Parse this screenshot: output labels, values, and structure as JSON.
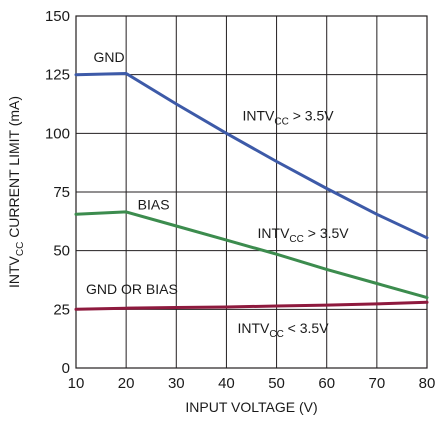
{
  "chart_data": {
    "type": "line",
    "title": "",
    "xlabel": "INPUT VOLTAGE (V)",
    "ylabel": {
      "pre": "INTV",
      "sub": "CC",
      "post": " CURRENT LIMIT (mA)"
    },
    "xlim": [
      10,
      80
    ],
    "ylim": [
      0,
      150
    ],
    "xticks": [
      10,
      20,
      30,
      40,
      50,
      60,
      70,
      80
    ],
    "yticks": [
      0,
      25,
      50,
      75,
      100,
      125,
      150
    ],
    "grid": true,
    "legend": "none",
    "series": [
      {
        "label": "GND",
        "color": "#3d5aa8",
        "x": [
          10,
          20,
          30,
          40,
          50,
          60,
          70,
          80
        ],
        "y": [
          125,
          125.5,
          112.5,
          100,
          88,
          76.5,
          65.5,
          55.5
        ]
      },
      {
        "label": "BIAS",
        "color": "#3c8c4e",
        "x": [
          10,
          20,
          30,
          40,
          50,
          60,
          70,
          80
        ],
        "y": [
          65.5,
          66.5,
          60.5,
          54.5,
          48.5,
          42,
          36,
          30
        ]
      },
      {
        "label": "GND OR BIAS",
        "color": "#8e1a3e",
        "x": [
          10,
          20,
          30,
          40,
          50,
          60,
          70,
          80
        ],
        "y": [
          25,
          25.5,
          25.8,
          26,
          26.4,
          26.8,
          27.3,
          28
        ]
      }
    ],
    "annotations": [
      {
        "pre": "INTV",
        "sub": "CC",
        "post": " > 3.5V",
        "x": 43.2,
        "y": 105.5
      },
      {
        "pre": "INTV",
        "sub": "CC",
        "post": " > 3.5V",
        "x": 46.2,
        "y": 55.5
      },
      {
        "pre": "INTV",
        "sub": "CC",
        "post": " < 3.5V",
        "x": 42.2,
        "y": 15
      },
      {
        "text": "GND",
        "x": 13.5,
        "y": 130.5
      },
      {
        "text": "BIAS",
        "x": 22.3,
        "y": 67.5
      },
      {
        "text": "GND OR BIAS",
        "x": 12,
        "y": 31.5
      }
    ]
  }
}
